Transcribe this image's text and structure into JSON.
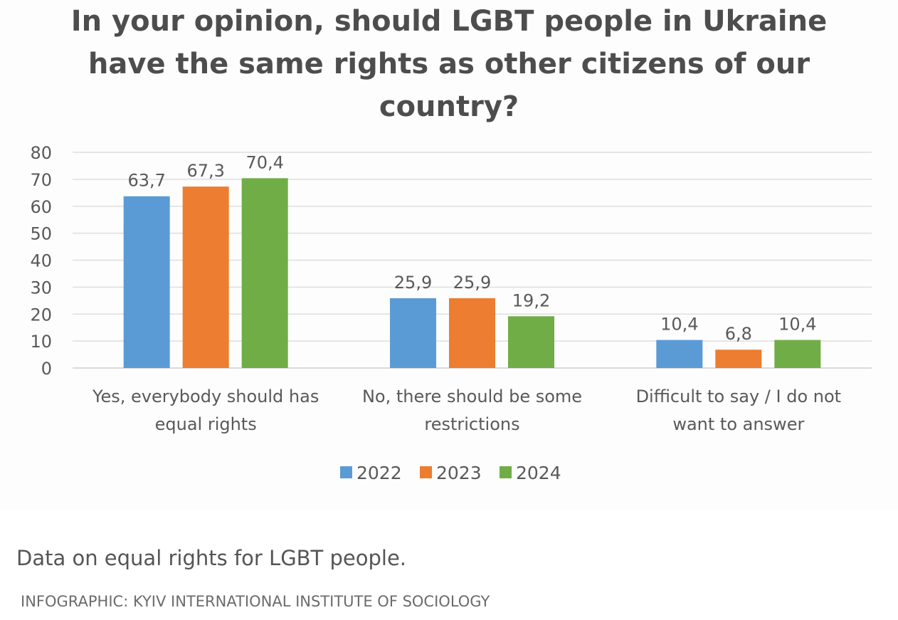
{
  "chart_data": {
    "type": "bar",
    "title_lines": [
      "In your opinion, should LGBT people in Ukraine",
      "have the same rights as other citizens of our",
      "country?"
    ],
    "categories": [
      [
        "Yes, everybody should has",
        "equal rights"
      ],
      [
        "No, there should be some",
        "restrictions"
      ],
      [
        "Difficult to say / I do not",
        "want to answer"
      ]
    ],
    "series": [
      {
        "name": "2022",
        "color": "#5b9bd5",
        "values": [
          63.7,
          25.9,
          10.4
        ],
        "labels": [
          "63,7",
          "25,9",
          "10,4"
        ]
      },
      {
        "name": "2023",
        "color": "#ed7d31",
        "values": [
          67.3,
          25.9,
          6.8
        ],
        "labels": [
          "67,3",
          "25,9",
          "6,8"
        ]
      },
      {
        "name": "2024",
        "color": "#70ad47",
        "values": [
          70.4,
          19.2,
          10.4
        ],
        "labels": [
          "70,4",
          "19,2",
          "10,4"
        ]
      }
    ],
    "ylim": [
      0,
      80
    ],
    "yticks": [
      0,
      10,
      20,
      30,
      40,
      50,
      60,
      70,
      80
    ],
    "grid": true,
    "legend": "bottom-center"
  },
  "caption": "Data on equal rights for LGBT people.",
  "credit": "INFOGRAPHIC: KYIV INTERNATIONAL INSTITUTE OF SOCIOLOGY"
}
